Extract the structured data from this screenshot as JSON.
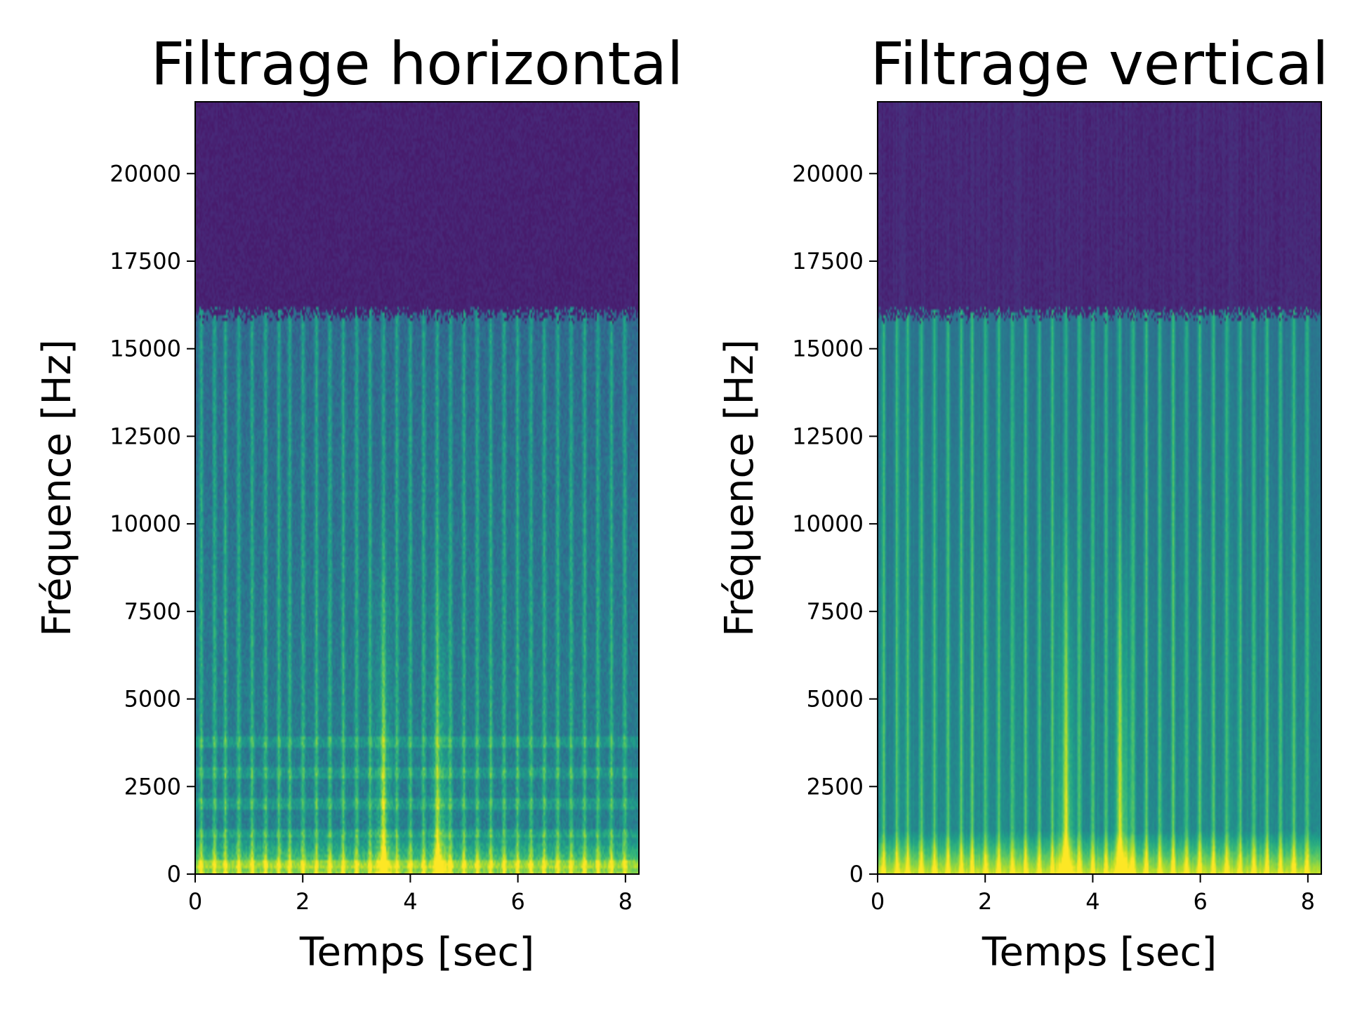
{
  "chart_data": [
    {
      "type": "heatmap",
      "title": "Filtrage horizontal",
      "xlabel": "Temps [sec]",
      "ylabel": "Fréquence [Hz]",
      "xlim": [
        0,
        8.25
      ],
      "ylim": [
        0,
        22050
      ],
      "x_ticks": [
        0,
        2,
        4,
        6,
        8
      ],
      "y_ticks": [
        0,
        2500,
        5000,
        7500,
        10000,
        12500,
        15000,
        17500,
        20000
      ],
      "colormap": "viridis",
      "cutoff_hz": 16000,
      "onsets_sec": [
        0.1,
        0.35,
        0.55,
        0.8,
        1.05,
        1.3,
        1.55,
        1.75,
        2.0,
        2.25,
        2.5,
        2.75,
        3.0,
        3.25,
        3.5,
        3.75,
        4.0,
        4.25,
        4.5,
        4.75,
        5.0,
        5.25,
        5.5,
        5.75,
        6.0,
        6.25,
        6.5,
        6.75,
        7.0,
        7.25,
        7.5,
        7.75,
        8.0
      ],
      "bright_regions_sec": [
        3.5,
        4.55
      ]
    },
    {
      "type": "heatmap",
      "title": "Filtrage vertical",
      "xlabel": "Temps [sec]",
      "ylabel": "Fréquence [Hz]",
      "xlim": [
        0,
        8.25
      ],
      "ylim": [
        0,
        22050
      ],
      "x_ticks": [
        0,
        2,
        4,
        6,
        8
      ],
      "y_ticks": [
        0,
        2500,
        5000,
        7500,
        10000,
        12500,
        15000,
        17500,
        20000
      ],
      "colormap": "viridis",
      "cutoff_hz": 16000,
      "onsets_sec": [
        0.1,
        0.35,
        0.55,
        0.8,
        1.05,
        1.3,
        1.55,
        1.75,
        2.0,
        2.25,
        2.5,
        2.75,
        3.0,
        3.25,
        3.5,
        3.75,
        4.0,
        4.25,
        4.5,
        4.75,
        5.0,
        5.25,
        5.5,
        5.75,
        6.0,
        6.25,
        6.5,
        6.75,
        7.0,
        7.25,
        7.5,
        7.75,
        8.0
      ],
      "bright_regions_sec": [
        3.5,
        4.55
      ]
    }
  ]
}
